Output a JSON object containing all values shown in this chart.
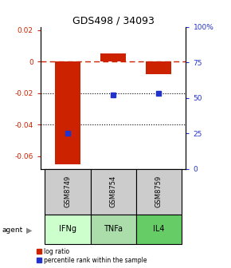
{
  "title": "GDS498 / 34093",
  "samples": [
    "GSM8749",
    "GSM8754",
    "GSM8759"
  ],
  "agents": [
    "IFNg",
    "TNFa",
    "IL4"
  ],
  "log_ratios": [
    -0.065,
    0.005,
    -0.008
  ],
  "percentile_ranks": [
    25,
    52,
    53
  ],
  "bar_color": "#cc2200",
  "dot_color": "#2233cc",
  "ylim_left": [
    -0.068,
    0.022
  ],
  "ylim_right": [
    0,
    100
  ],
  "yticks_left": [
    0.02,
    0.0,
    -0.02,
    -0.04,
    -0.06
  ],
  "yticks_right": [
    100,
    75,
    50,
    25,
    0
  ],
  "ytick_labels_left": [
    "0.02",
    "0",
    "-0.02",
    "-0.04",
    "-0.06"
  ],
  "ytick_labels_right": [
    "100%",
    "75",
    "50",
    "25",
    "0"
  ],
  "agent_colors": [
    "#ccffcc",
    "#aaddaa",
    "#66cc66"
  ],
  "sample_bg": "#cccccc",
  "bar_width": 0.55,
  "legend_log_label": "log ratio",
  "legend_pct_label": "percentile rank within the sample"
}
